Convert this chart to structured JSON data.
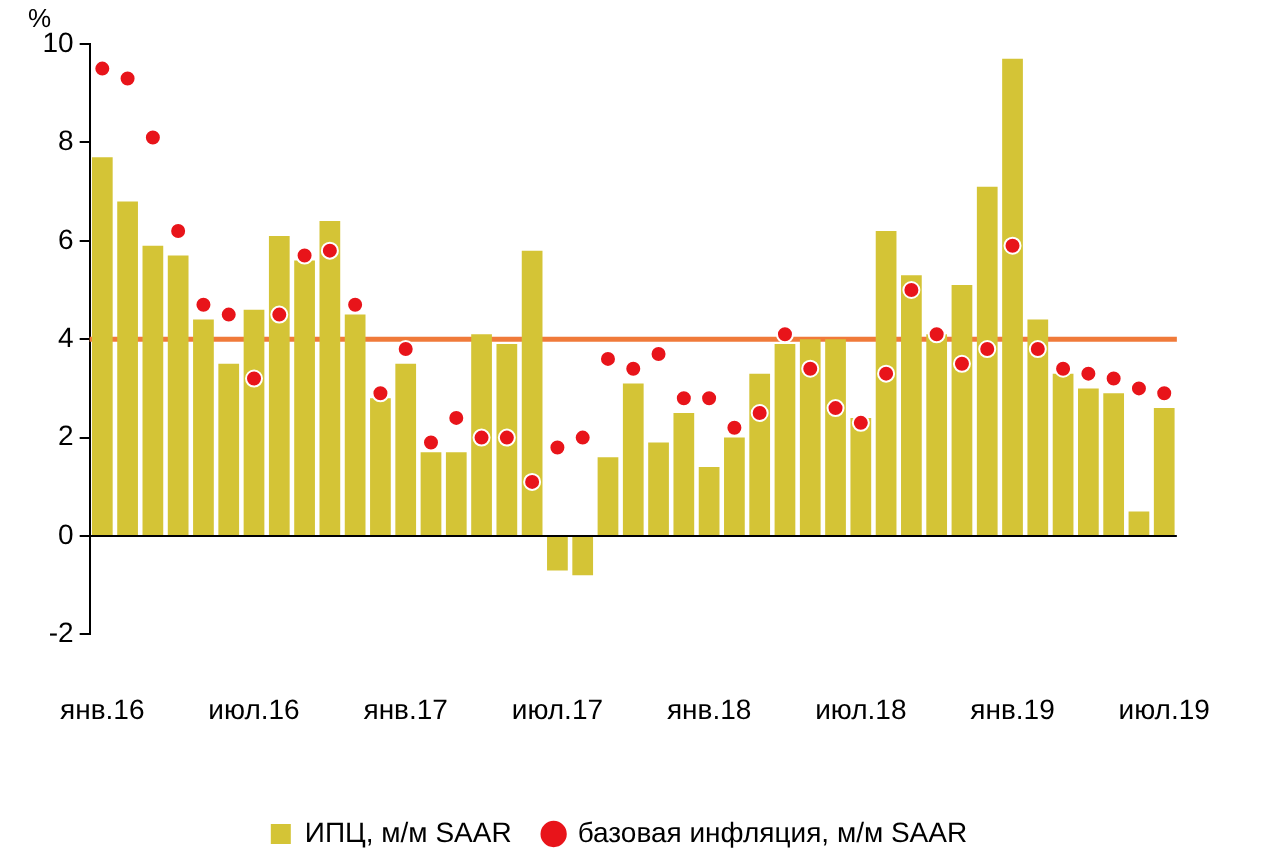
{
  "chart_data": {
    "type": "bar",
    "ylabel": "%",
    "categories": [
      "янв.16",
      null,
      null,
      null,
      null,
      null,
      "июл.16",
      null,
      null,
      null,
      null,
      null,
      "янв.17",
      null,
      null,
      null,
      null,
      null,
      "июл.17",
      null,
      null,
      null,
      null,
      null,
      "янв.18",
      null,
      null,
      null,
      null,
      null,
      "июл.18",
      null,
      null,
      null,
      null,
      null,
      "янв.19",
      null,
      null,
      null,
      null,
      null,
      "июл.19"
    ],
    "series": [
      {
        "name": "ИПЦ, м/м SAAR",
        "color": "#d4c436",
        "values": [
          7.7,
          6.8,
          5.9,
          5.7,
          4.4,
          3.5,
          4.6,
          6.1,
          5.6,
          6.4,
          4.5,
          2.8,
          3.5,
          1.7,
          1.7,
          4.1,
          3.9,
          5.8,
          -0.7,
          -0.8,
          1.6,
          3.1,
          1.9,
          2.5,
          1.4,
          2.0,
          3.3,
          3.9,
          4.0,
          4.0,
          2.4,
          6.2,
          5.3,
          4.1,
          5.1,
          7.1,
          9.7,
          4.4,
          3.3,
          3.0,
          2.9,
          0.5,
          2.6
        ]
      },
      {
        "name": "базовая инфляция, м/м SAAR",
        "type": "scatter",
        "marker": "circle",
        "color": "#e8141a",
        "values": [
          9.5,
          9.3,
          8.1,
          6.2,
          4.7,
          4.5,
          3.2,
          4.5,
          5.7,
          5.8,
          4.7,
          2.9,
          3.8,
          1.9,
          2.4,
          2.0,
          2.0,
          1.1,
          1.8,
          2.0,
          3.6,
          3.4,
          3.7,
          2.8,
          2.8,
          2.2,
          2.5,
          4.1,
          3.4,
          2.6,
          2.3,
          3.3,
          5.0,
          4.1,
          3.5,
          3.8,
          5.9,
          3.8,
          3.4,
          3.3,
          3.2,
          3.0,
          2.9
        ]
      }
    ],
    "ylim": [
      -2,
      10
    ],
    "yticks": [
      -2,
      0,
      2,
      4,
      6,
      8,
      10
    ],
    "grid": false,
    "legend": "bottom",
    "ref_lines": [
      {
        "axis": "y",
        "value": 4,
        "color": "#f07a3a"
      }
    ]
  }
}
